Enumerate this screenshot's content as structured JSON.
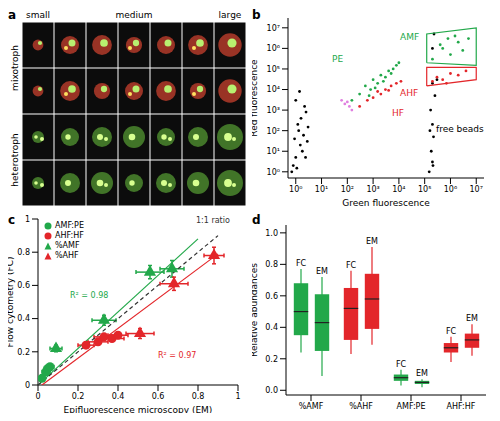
{
  "chart_data": [
    {
      "type": "image",
      "title": "a",
      "column_labels": [
        "small",
        "medium",
        "large"
      ],
      "row_labels": [
        "mixotroph",
        "heterotroph"
      ]
    },
    {
      "type": "scatter",
      "title": "b",
      "x_label": "Green fluorescence",
      "y_label": "Red fluorescence",
      "log": true,
      "xlim": [
        0.5,
        20000000
      ],
      "ylim": [
        0.5,
        30000000
      ],
      "xticks": [
        {
          "value": 1,
          "label": "10⁰"
        },
        {
          "value": 10,
          "label": "10¹"
        },
        {
          "value": 100,
          "label": "10²"
        },
        {
          "value": 1000,
          "label": "10³"
        },
        {
          "value": 10000,
          "label": "10⁴"
        },
        {
          "value": 100000,
          "label": "10⁵"
        },
        {
          "value": 1000000,
          "label": "10⁶"
        },
        {
          "value": 10000000,
          "label": "10⁷"
        }
      ],
      "yticks": [
        {
          "value": 1,
          "label": "10⁰"
        },
        {
          "value": 10,
          "label": "10¹"
        },
        {
          "value": 100,
          "label": "10²"
        },
        {
          "value": 1000,
          "label": "10³"
        },
        {
          "value": 10000,
          "label": "10⁴"
        },
        {
          "value": 100000,
          "label": "10⁵"
        },
        {
          "value": 1000000,
          "label": "10⁶"
        },
        {
          "value": 10000000,
          "label": "10⁷"
        }
      ],
      "series": [
        {
          "color": "#000000",
          "x": [
            0.8,
            1,
            1.5,
            2,
            1.2,
            2.5,
            1,
            1.8,
            3,
            0.9,
            2.2,
            1.4,
            0.7,
            1.6,
            2.8,
            1.1,
            1.3,
            2.4
          ],
          "y": [
            2,
            5,
            20,
            60,
            200,
            800,
            3000,
            10,
            150,
            40,
            1500,
            8000,
            1,
            400,
            30,
            1.5,
            100,
            5
          ]
        },
        {
          "color": "#e080e0",
          "x": [
            80,
            120,
            60,
            150,
            100
          ],
          "y": [
            2000,
            1500,
            3000,
            1000,
            2500
          ]
        },
        {
          "name": "PE",
          "color": "#22a84a",
          "x": [
            150,
            300,
            500,
            800,
            1000,
            1500,
            2000,
            3000,
            4000,
            6000,
            8000,
            2500,
            700,
            10000,
            1200,
            5000
          ],
          "y": [
            3000,
            6000,
            15000,
            10000,
            30000,
            20000,
            50000,
            40000,
            80000,
            100000,
            150000,
            25000,
            5000,
            200000,
            12000,
            60000
          ]
        },
        {
          "name": "HF",
          "color": "#e3262a",
          "x": [
            300,
            600,
            1000,
            2000,
            3000,
            5000,
            8000,
            1500,
            4000,
            12000
          ],
          "y": [
            1500,
            3000,
            4000,
            6000,
            10000,
            15000,
            20000,
            8000,
            9000,
            25000
          ]
        },
        {
          "name": "free beads",
          "color": "#000000",
          "x": [
            150000,
            200000,
            180000,
            220000,
            200000,
            170000,
            250000,
            200000,
            300000,
            160000,
            210000,
            200000,
            230000
          ],
          "y": [
            1,
            3,
            10,
            50,
            200,
            1000,
            5000,
            20000,
            30000,
            100,
            2,
            1000000,
            5000000
          ]
        },
        {
          "color": "#22a84a",
          "x": [
            200000,
            500000,
            1000000,
            2000000,
            3000000,
            800000,
            400000,
            1500000,
            5000000
          ],
          "y": [
            300000,
            1000000,
            500000,
            2000000,
            800000,
            3000000,
            1500000,
            4000000,
            3000000
          ]
        },
        {
          "color": "#e3262a",
          "x": [
            200000,
            300000,
            500000,
            1000000,
            2000000,
            4000000,
            700000
          ],
          "y": [
            25000,
            40000,
            30000,
            60000,
            50000,
            80000,
            20000
          ]
        }
      ],
      "gates": [
        {
          "name": "AMF",
          "color": "#22a84a",
          "x": [
            120000,
            120000,
            10000000,
            10000000,
            120000
          ],
          "y": [
            200000,
            5000000,
            10000000,
            150000,
            200000
          ]
        },
        {
          "name": "AHF",
          "color": "#e3262a",
          "x": [
            120000,
            120000,
            10000000,
            10000000,
            120000
          ],
          "y": [
            15000,
            120000,
            120000,
            30000,
            15000
          ]
        }
      ]
    },
    {
      "type": "scatter",
      "title": "c",
      "x_label": "Epifluorescence microscopy (EM)",
      "y_label": "Flow cytometry (FC)",
      "xlim": [
        0,
        1
      ],
      "ylim": [
        0,
        1
      ],
      "xticks": [
        0,
        0.2,
        0.4,
        0.6,
        0.8,
        1
      ],
      "yticks": [
        0,
        0.2,
        0.4,
        0.6,
        0.8,
        1
      ],
      "legend": "upper left",
      "series": [
        {
          "name": "AMF:PE",
          "color": "#22a84a",
          "marker": "circle",
          "x": [
            0.02,
            0.04,
            0.05,
            0.06
          ],
          "y": [
            0.04,
            0.08,
            0.1,
            0.11
          ],
          "x_err": [
            0.01,
            0.02,
            0.02,
            0.02
          ]
        },
        {
          "name": "AHF:HF",
          "color": "#e3262a",
          "marker": "circle",
          "x": [
            0.24,
            0.3,
            0.33,
            0.37,
            0.4
          ],
          "y": [
            0.24,
            0.26,
            0.29,
            0.28,
            0.3
          ],
          "x_err": [
            0.04,
            0.05,
            0.05,
            0.06,
            0.05
          ]
        },
        {
          "name": "%AMF",
          "color": "#22a84a",
          "marker": "triangle",
          "x": [
            0.09,
            0.33,
            0.56,
            0.67
          ],
          "y": [
            0.22,
            0.39,
            0.68,
            0.7
          ],
          "x_err": [
            0.03,
            0.06,
            0.07,
            0.06
          ],
          "y_err": [
            0.02,
            0.03,
            0.04,
            0.05
          ]
        },
        {
          "name": "%AHF",
          "color": "#e3262a",
          "marker": "triangle",
          "x": [
            0.51,
            0.68,
            0.88
          ],
          "y": [
            0.31,
            0.61,
            0.78
          ],
          "x_err": [
            0.07,
            0.07,
            0.05
          ],
          "y_err": [
            0.03,
            0.04,
            0.05
          ]
        }
      ],
      "fits": [
        {
          "color": "#22a84a",
          "line_style": "solid",
          "x": [
            0,
            0.8
          ],
          "y": [
            0,
            0.88
          ]
        },
        {
          "color": "#e3262a",
          "line_style": "solid",
          "x": [
            0.02,
            0.9
          ],
          "y": [
            0,
            0.79
          ]
        },
        {
          "color": "#333333",
          "line_style": "dashed",
          "x": [
            0,
            0.9
          ],
          "y": [
            0,
            0.9
          ]
        }
      ],
      "annotations": [
        "1:1 ratio",
        "R² = 0.98",
        "R² = 0.97"
      ]
    },
    {
      "type": "box",
      "title": "d",
      "y_label": "Relative abundances",
      "categories": [
        "%AMF",
        "%AHF",
        "AMF:PE",
        "AHF:HF"
      ],
      "colors": [
        "#22a84a",
        "#e3262a",
        "#22a84a",
        "#e3262a"
      ],
      "ylim": [
        -0.03,
        1.05
      ],
      "yticks": [
        {
          "value": 0,
          "label": "0.0"
        },
        {
          "value": 0.2,
          "label": "0.2"
        },
        {
          "value": 0.4,
          "label": "0.4"
        },
        {
          "value": 0.6,
          "label": "0.6"
        },
        {
          "value": 0.8,
          "label": "0.8"
        },
        {
          "value": 1,
          "label": "1.0"
        }
      ],
      "series": [
        {
          "name": "FC",
          "min": [
            0.24,
            0.23,
            0.03,
            0.18
          ],
          "q1": [
            0.35,
            0.32,
            0.06,
            0.24
          ],
          "median": [
            0.5,
            0.52,
            0.08,
            0.27
          ],
          "q3": [
            0.68,
            0.65,
            0.1,
            0.3
          ],
          "max": [
            0.77,
            0.76,
            0.13,
            0.34
          ]
        },
        {
          "name": "EM",
          "min": [
            0.09,
            0.29,
            0.02,
            0.22
          ],
          "q1": [
            0.25,
            0.39,
            0.04,
            0.27
          ],
          "median": [
            0.43,
            0.58,
            0.05,
            0.32
          ],
          "q3": [
            0.61,
            0.74,
            0.06,
            0.36
          ],
          "max": [
            0.72,
            0.91,
            0.07,
            0.42
          ]
        }
      ]
    }
  ]
}
